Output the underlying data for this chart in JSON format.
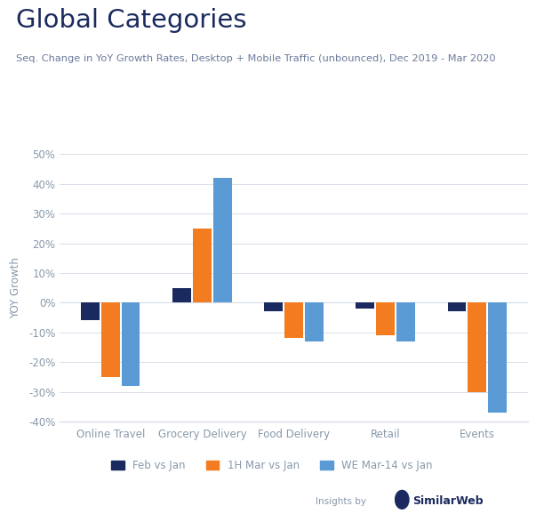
{
  "title": "Global Categories",
  "subtitle": "Seq. Change in YoY Growth Rates, Desktop + Mobile Traffic (unbounced), Dec 2019 - Mar 2020",
  "categories": [
    "Online Travel",
    "Grocery Delivery",
    "Food Delivery",
    "Retail",
    "Events"
  ],
  "series": [
    {
      "name": "Feb vs Jan",
      "color": "#1b2a5e",
      "values": [
        -6,
        5,
        -3,
        -2,
        -3
      ]
    },
    {
      "name": "1H Mar vs Jan",
      "color": "#f47c20",
      "values": [
        -25,
        25,
        -12,
        -11,
        -30
      ]
    },
    {
      "name": "WE Mar-14 vs Jan",
      "color": "#5b9bd5",
      "values": [
        -28,
        42,
        -13,
        -13,
        -37
      ]
    }
  ],
  "ylabel": "YOY Growth",
  "ylim": [
    -40,
    50
  ],
  "yticks": [
    -40,
    -30,
    -20,
    -10,
    0,
    10,
    20,
    30,
    40,
    50
  ],
  "background_color": "#ffffff",
  "title_color": "#1b2a5e",
  "subtitle_color": "#6b7a99",
  "grid_color": "#d8dde8",
  "tick_color": "#8899aa",
  "bar_width": 0.22
}
